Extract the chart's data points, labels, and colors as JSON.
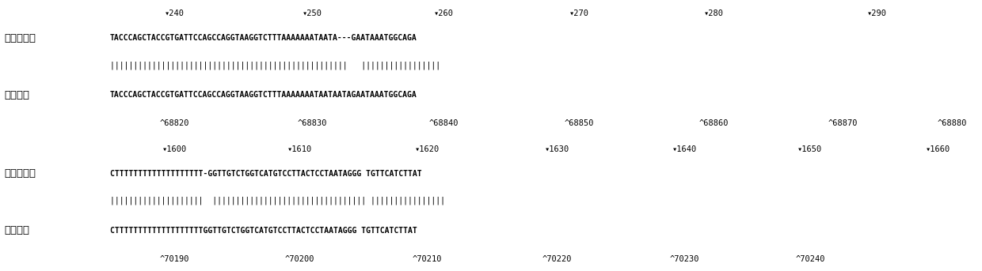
{
  "bg_color": "#ffffff",
  "panels": [
    {
      "top_ticks": [
        [
          0.178,
          "▾240"
        ],
        [
          0.318,
          "▾250"
        ],
        [
          0.452,
          "▾260"
        ],
        [
          0.59,
          "▾270"
        ],
        [
          0.727,
          "▾280"
        ],
        [
          0.893,
          "▾290"
        ]
      ],
      "label1": "双胞胞哥哥",
      "seq1": "TACCCAGCTACCGTGATTCCAGCCAGGTAAGGTCTTTAAAAAAATAATA---GAATAAATGGCAGA",
      "match": "|||||||||||||||||||||||||||||||||||||||||||||||||||   |||||||||||||||||",
      "label2": "正常对照",
      "seq2": "TACCCAGCTACCGTGATTCCAGCCAGGTAAGGTCTTTAAAAAAATAATAATAGAATAAATGGCAGA",
      "bot_ticks": [
        [
          0.178,
          "^68820"
        ],
        [
          0.318,
          "^68830"
        ],
        [
          0.452,
          "^68840"
        ],
        [
          0.59,
          "^68850"
        ],
        [
          0.727,
          "^68860"
        ],
        [
          0.858,
          "^68870"
        ],
        [
          0.97,
          "^68880"
        ]
      ]
    },
    {
      "top_ticks": [
        [
          0.178,
          "▾1600"
        ],
        [
          0.305,
          "▾1610"
        ],
        [
          0.435,
          "▾1620"
        ],
        [
          0.567,
          "▾1630"
        ],
        [
          0.697,
          "▾1640"
        ],
        [
          0.825,
          "▾1650"
        ],
        [
          0.955,
          "▾1660"
        ]
      ],
      "label1": "双胞胞哥哥",
      "seq1": "CTTTTTTTTTTTTTTTTTTT-GGTTGTCTGGTCATGTCCTTACTCCTAATAGGG TGTTCATCTTAT",
      "match": "||||||||||||||||||||  ||||||||||||||||||||||||||||||||| ||||||||||||||||",
      "label2": "正常对照",
      "seq2": "CTTTTTTTTTTTTTTTTTTTGGTTGTCTGGTCATGTCCTTACTCCTAATAGGG TGTTCATCTTAT",
      "bot_ticks": [
        [
          0.178,
          "^70190"
        ],
        [
          0.305,
          "^70200"
        ],
        [
          0.435,
          "^70210"
        ],
        [
          0.567,
          "^70220"
        ],
        [
          0.697,
          "^70230"
        ],
        [
          0.825,
          "^70240"
        ]
      ]
    }
  ]
}
